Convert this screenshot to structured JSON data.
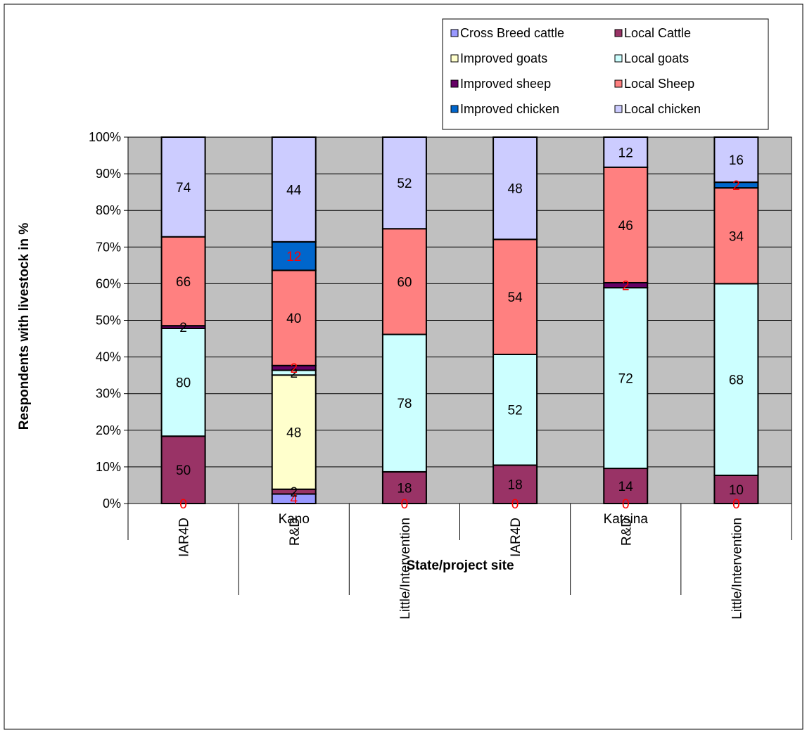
{
  "chart_data": {
    "type": "bar",
    "stacked": true,
    "normalized": true,
    "xlabel": "State/project site",
    "ylabel": "Respondents with livestock in %",
    "ylim": [
      0,
      100
    ],
    "yticks": [
      "0%",
      "10%",
      "20%",
      "30%",
      "40%",
      "50%",
      "60%",
      "70%",
      "80%",
      "90%",
      "100%"
    ],
    "grid": "horizontal",
    "legend_position": "top-right",
    "groups": [
      {
        "label": "Kano",
        "categories": [
          "IAR4D",
          "R&D",
          "Little/Intervention"
        ]
      },
      {
        "label": "Katsina",
        "categories": [
          "IAR4D",
          "R&D",
          "Little/Intervention"
        ]
      }
    ],
    "categories": [
      "IAR4D",
      "R&D",
      "Little/Intervention",
      "IAR4D",
      "R&D",
      "Little/Intervention"
    ],
    "series": [
      {
        "name": "Cross Breed cattle",
        "color": "#9999ff",
        "values": [
          0,
          4,
          0,
          0,
          0,
          0
        ]
      },
      {
        "name": "Local Cattle",
        "color": "#993366",
        "values": [
          50,
          2,
          18,
          18,
          14,
          10
        ]
      },
      {
        "name": "Improved goats",
        "color": "#ffffcc",
        "values": [
          0,
          48,
          0,
          0,
          0,
          0
        ]
      },
      {
        "name": "Local goats",
        "color": "#ccffff",
        "values": [
          80,
          2,
          78,
          52,
          72,
          68
        ]
      },
      {
        "name": "Improved sheep",
        "color": "#660066",
        "values": [
          2,
          2,
          0,
          0,
          2,
          0
        ]
      },
      {
        "name": "Local Sheep",
        "color": "#ff8080",
        "values": [
          66,
          40,
          60,
          54,
          46,
          34
        ]
      },
      {
        "name": "Improved chicken",
        "color": "#0066cc",
        "values": [
          0,
          12,
          0,
          0,
          0,
          2
        ]
      },
      {
        "name": "Local chicken",
        "color": "#ccccff",
        "values": [
          74,
          44,
          52,
          48,
          12,
          16
        ]
      }
    ],
    "data_labels": [
      [
        {
          "series": 0,
          "text": "0",
          "color": "#ff0000"
        },
        {
          "series": 1,
          "text": "50",
          "color": "#000000"
        },
        {
          "series": 3,
          "text": "80",
          "color": "#000000"
        },
        {
          "series": 4,
          "text": "2",
          "color": "#000000"
        },
        {
          "series": 5,
          "text": "66",
          "color": "#000000"
        },
        {
          "series": 7,
          "text": "74",
          "color": "#000000"
        }
      ],
      [
        {
          "series": 0,
          "text": "4",
          "color": "#ff0000"
        },
        {
          "series": 1,
          "text": "2",
          "color": "#000000"
        },
        {
          "series": 2,
          "text": "48",
          "color": "#000000"
        },
        {
          "series": 3,
          "text": "2",
          "color": "#000000"
        },
        {
          "series": 4,
          "text": "2",
          "color": "#ff0000"
        },
        {
          "series": 5,
          "text": "40",
          "color": "#000000"
        },
        {
          "series": 6,
          "text": "12",
          "color": "#ff0000"
        },
        {
          "series": 7,
          "text": "44",
          "color": "#000000"
        }
      ],
      [
        {
          "series": 0,
          "text": "0",
          "color": "#ff0000"
        },
        {
          "series": 1,
          "text": "18",
          "color": "#000000"
        },
        {
          "series": 3,
          "text": "78",
          "color": "#000000"
        },
        {
          "series": 5,
          "text": "60",
          "color": "#000000"
        },
        {
          "series": 7,
          "text": "52",
          "color": "#000000"
        }
      ],
      [
        {
          "series": 0,
          "text": "0",
          "color": "#ff0000"
        },
        {
          "series": 1,
          "text": "18",
          "color": "#000000"
        },
        {
          "series": 3,
          "text": "52",
          "color": "#000000"
        },
        {
          "series": 5,
          "text": "54",
          "color": "#000000"
        },
        {
          "series": 7,
          "text": "48",
          "color": "#000000"
        }
      ],
      [
        {
          "series": 0,
          "text": "0",
          "color": "#ff0000"
        },
        {
          "series": 1,
          "text": "14",
          "color": "#000000"
        },
        {
          "series": 3,
          "text": "72",
          "color": "#000000"
        },
        {
          "series": 4,
          "text": "2",
          "color": "#ff0000"
        },
        {
          "series": 5,
          "text": "46",
          "color": "#000000"
        },
        {
          "series": 7,
          "text": "12",
          "color": "#000000"
        }
      ],
      [
        {
          "series": 0,
          "text": "0",
          "color": "#ff0000"
        },
        {
          "series": 1,
          "text": "10",
          "color": "#000000"
        },
        {
          "series": 3,
          "text": "68",
          "color": "#000000"
        },
        {
          "series": 5,
          "text": "34",
          "color": "#000000"
        },
        {
          "series": 6,
          "text": "2",
          "color": "#ff0000"
        },
        {
          "series": 7,
          "text": "16",
          "color": "#000000"
        }
      ]
    ],
    "colors": {
      "plot_background": "#c0c0c0",
      "gridline": "#000000",
      "bar_outline": "#000000"
    }
  }
}
